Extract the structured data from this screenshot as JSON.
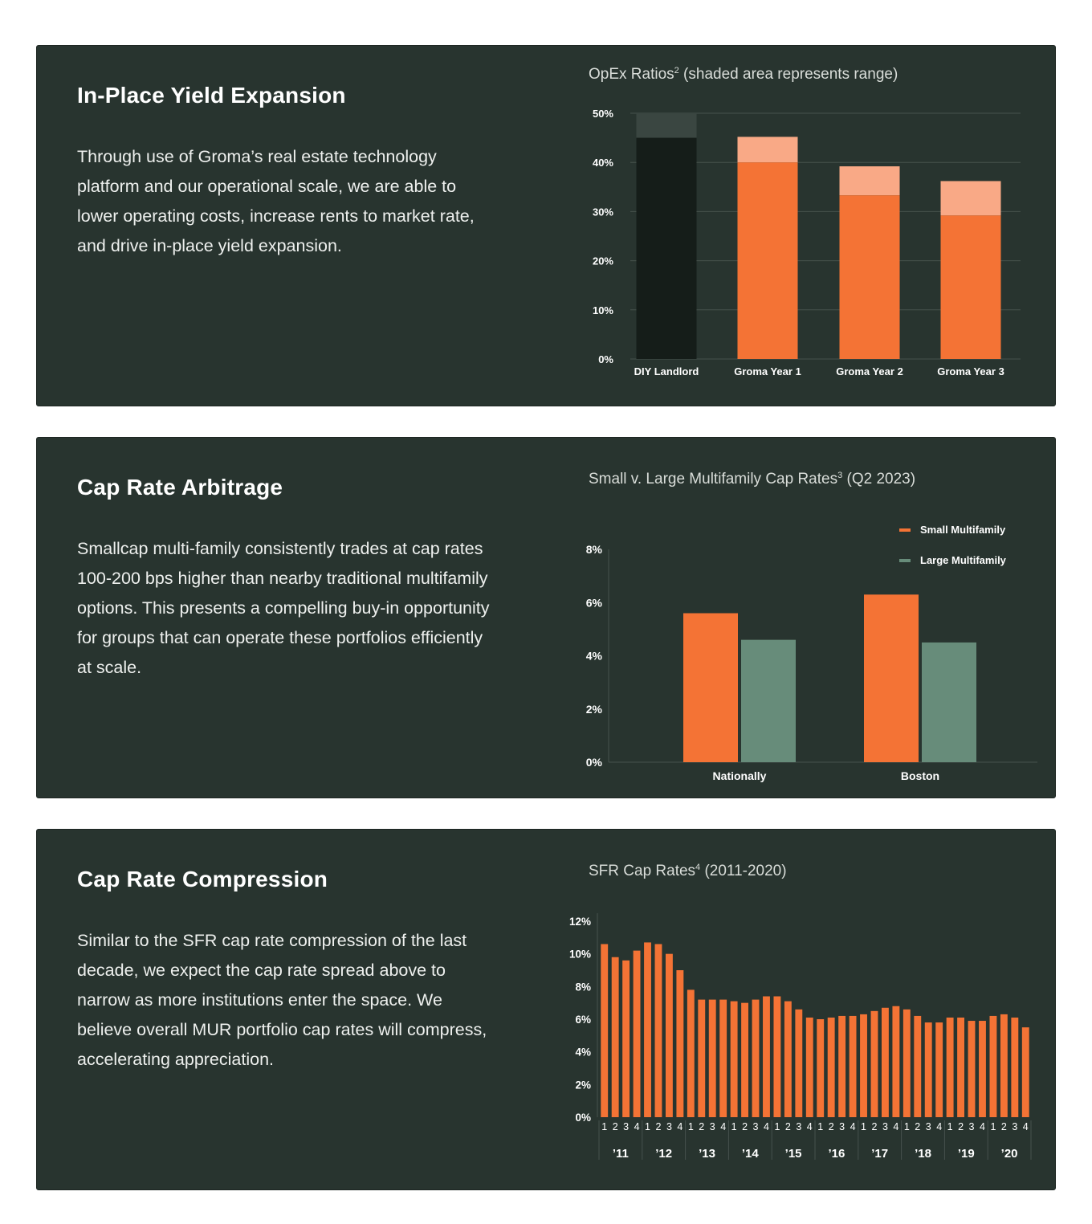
{
  "colors": {
    "background": "#ffffff",
    "card": "#28342f",
    "orange": "#f47335",
    "orange_light": "#f9a986",
    "dark_bar": "#151d19",
    "dark_bar_range": "#3a4641",
    "green": "#678c7a",
    "grid": "#46524d",
    "text": "#ffffff"
  },
  "sections": [
    {
      "title": "In-Place Yield Expansion",
      "body": "Through use of Groma’s real estate technology platform and our operational scale, we are able to lower operating costs, increase rents to market rate, and drive in-place yield expansion.",
      "chart_title": "OpEx Ratios",
      "chart_title_sup": "2",
      "chart_title_rest": " (shaded area represents range)"
    },
    {
      "title": "Cap Rate Arbitrage",
      "body": "Smallcap multi-family consistently trades at cap rates 100-200 bps higher than nearby traditional multifamily options. This presents a compelling buy-in opportunity for groups that can operate these portfolios efficiently at scale.",
      "chart_title": "Small v. Large Multifamily Cap Rates",
      "chart_title_sup": "3",
      "chart_title_rest": " (Q2 2023)"
    },
    {
      "title": "Cap Rate Compression",
      "body": "Similar to the SFR cap rate compression of the last decade, we expect the cap rate spread above to narrow as more institutions enter the space. We believe overall MUR portfolio cap rates will compress, accelerating appreciation.",
      "chart_title": "SFR Cap Rates",
      "chart_title_sup": "4",
      "chart_title_rest": " (2011-2020)"
    }
  ],
  "chart_data": [
    {
      "type": "bar",
      "subtype": "range",
      "categories": [
        "DIY Landlord",
        "Groma Year 1",
        "Groma Year 2",
        "Groma Year 3"
      ],
      "series": [
        {
          "low": [
            45,
            40,
            33.3,
            29.2
          ],
          "high": [
            50,
            45.2,
            39.2,
            36.2
          ]
        }
      ],
      "ylim": [
        0,
        50
      ],
      "yticks": [
        0,
        10,
        20,
        30,
        40,
        50
      ],
      "ytick_labels": [
        "0%",
        "10%",
        "20%",
        "30%",
        "40%",
        "50%"
      ],
      "grid": true
    },
    {
      "type": "bar",
      "categories": [
        "Nationally",
        "Boston"
      ],
      "series": [
        {
          "name": "Small Multifamily",
          "values": [
            5.6,
            6.3
          ],
          "color": "#f47335"
        },
        {
          "name": "Large Multifamily",
          "values": [
            4.6,
            4.5
          ],
          "color": "#678c7a"
        }
      ],
      "ylim": [
        0,
        8
      ],
      "yticks": [
        0,
        2,
        4,
        6,
        8
      ],
      "ytick_labels": [
        "0%",
        "2%",
        "4%",
        "6%",
        "8%"
      ],
      "legend": "top-right",
      "grid": false
    },
    {
      "type": "bar",
      "years": [
        "’11",
        "’12",
        "’13",
        "’14",
        "’15",
        "’16",
        "’17",
        "’18",
        "’19",
        "’20"
      ],
      "quarters": [
        "1",
        "2",
        "3",
        "4"
      ],
      "values": [
        10.6,
        9.8,
        9.6,
        10.2,
        10.7,
        10.6,
        10.0,
        9.0,
        7.8,
        7.2,
        7.2,
        7.2,
        7.1,
        7.0,
        7.2,
        7.4,
        7.4,
        7.1,
        6.6,
        6.1,
        6.0,
        6.1,
        6.2,
        6.2,
        6.3,
        6.5,
        6.7,
        6.8,
        6.6,
        6.2,
        5.8,
        5.8,
        6.1,
        6.1,
        5.9,
        5.9,
        6.2,
        6.3,
        6.1,
        5.5
      ],
      "ylim": [
        0,
        12
      ],
      "yticks": [
        0,
        2,
        4,
        6,
        8,
        10,
        12
      ],
      "ytick_labels": [
        "0%",
        "2%",
        "4%",
        "6%",
        "8%",
        "10%",
        "12%"
      ],
      "grid": false
    }
  ]
}
